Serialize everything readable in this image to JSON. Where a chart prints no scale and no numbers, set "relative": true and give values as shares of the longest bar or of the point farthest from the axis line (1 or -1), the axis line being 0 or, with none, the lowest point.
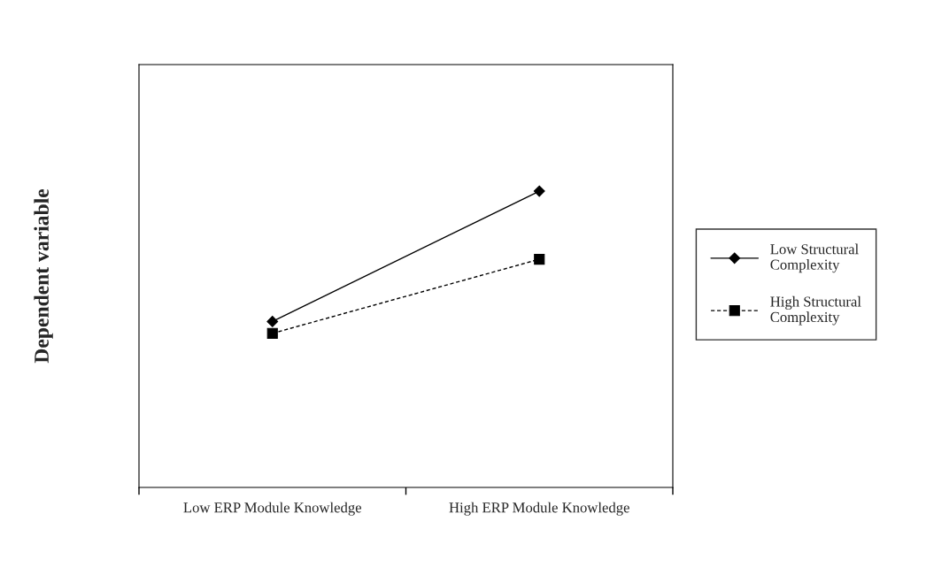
{
  "chart_data": {
    "type": "line",
    "ylabel": "Dependent variable",
    "categories": [
      "Low ERP Module Knowledge",
      "High ERP Module Knowledge"
    ],
    "relative": true,
    "series": [
      {
        "name": "Low Structural Complexity",
        "color": "#000000",
        "values": [
          0.56,
          1.0
        ],
        "marker": "diamond",
        "line_style": "solid"
      },
      {
        "name": "High Structural Complexity",
        "color": "#000000",
        "values": [
          0.52,
          0.77
        ],
        "marker": "square",
        "line_style": "dashed"
      }
    ],
    "grid": false,
    "legend": "right"
  }
}
